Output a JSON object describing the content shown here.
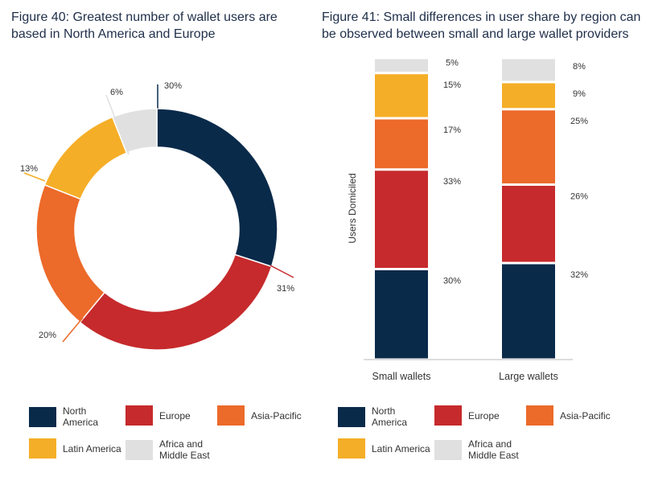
{
  "colors": {
    "North America": "#0a2a4a",
    "Europe": "#c62a2c",
    "Asia-Pacific": "#ec6a2a",
    "Latin America": "#f5ae27",
    "Africa and Middle East": "#e0e0e1"
  },
  "chart_data": [
    {
      "type": "pie",
      "title": "Figure 40: Greatest number of wallet users are based in North America and Europe",
      "labels": [
        "North America",
        "Europe",
        "Asia-Pacific",
        "Latin America",
        "Africa and Middle East"
      ],
      "values": [
        30,
        31,
        20,
        13,
        6
      ],
      "value_labels": [
        "30%",
        "31%",
        "20%",
        "13%",
        "6%"
      ],
      "legend": [
        {
          "label": "North America",
          "color_key": "North America"
        },
        {
          "label": "Europe",
          "color_key": "Europe"
        },
        {
          "label": "Asia-Pacific",
          "color_key": "Asia-Pacific"
        },
        {
          "label": "Latin America",
          "color_key": "Latin America"
        },
        {
          "label": "Africa and Middle East",
          "color_key": "Africa and Middle East"
        }
      ]
    },
    {
      "type": "bar",
      "stacked": true,
      "title": "Figure 41: Small differences in user share by region can be observed between small and large wallet providers",
      "ylabel": "Users Domiciled",
      "categories": [
        "Small wallets",
        "Large wallets"
      ],
      "series": [
        {
          "name": "North America",
          "values": [
            30,
            32
          ],
          "labels": [
            "30%",
            "32%"
          ]
        },
        {
          "name": "Europe",
          "values": [
            33,
            26
          ],
          "labels": [
            "33%",
            "26%"
          ]
        },
        {
          "name": "Asia-Pacific",
          "values": [
            17,
            25
          ],
          "labels": [
            "17%",
            "25%"
          ]
        },
        {
          "name": "Latin America",
          "values": [
            15,
            9
          ],
          "labels": [
            "15%",
            "9%"
          ]
        },
        {
          "name": "Africa and Middle East",
          "values": [
            5,
            8
          ],
          "labels": [
            "5%",
            "8%"
          ]
        }
      ],
      "legend": [
        {
          "label": "North America",
          "color_key": "North America"
        },
        {
          "label": "Europe",
          "color_key": "Europe"
        },
        {
          "label": "Asia-Pacific",
          "color_key": "Asia-Pacific"
        },
        {
          "label": "Latin America",
          "color_key": "Latin America"
        },
        {
          "label": "Africa and Middle East",
          "color_key": "Africa and Middle East"
        }
      ]
    }
  ]
}
